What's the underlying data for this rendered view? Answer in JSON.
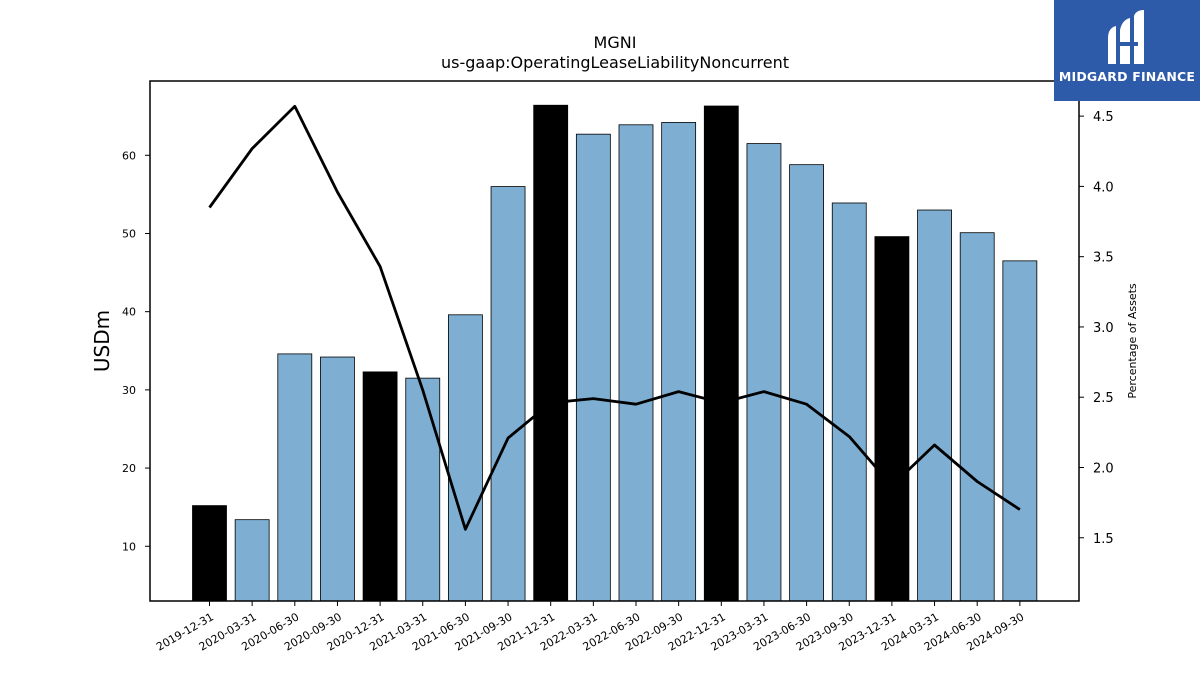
{
  "chart_data": {
    "type": "bar",
    "title": "MGNI",
    "subtitle": "us-gaap:OperatingLeaseLiabilityNoncurrent",
    "ylabel": "USDm",
    "y2label": "Percentage of Assets",
    "ylim": [
      3,
      69.5
    ],
    "y2lim": [
      1.05,
      4.75
    ],
    "yticks": [
      10,
      20,
      30,
      40,
      50,
      60
    ],
    "y2ticks": [
      1.5,
      2.0,
      2.5,
      3.0,
      3.5,
      4.0,
      4.5
    ],
    "y2tick_labels": [
      "1.5",
      "2.0",
      "2.5",
      "3.0",
      "3.5",
      "4.0",
      "4.5"
    ],
    "categories": [
      "2019-12-31",
      "2020-03-31",
      "2020-06-30",
      "2020-09-30",
      "2020-12-31",
      "2021-03-31",
      "2021-06-30",
      "2021-09-30",
      "2021-12-31",
      "2022-03-31",
      "2022-06-30",
      "2022-09-30",
      "2022-12-31",
      "2023-03-31",
      "2023-06-30",
      "2023-09-30",
      "2023-12-31",
      "2024-03-31",
      "2024-06-30",
      "2024-09-30"
    ],
    "series": [
      {
        "kind": "bar",
        "values": [
          15.2,
          13.4,
          34.6,
          34.2,
          32.3,
          31.5,
          39.6,
          56.0,
          66.4,
          62.7,
          63.9,
          64.2,
          66.3,
          61.5,
          58.8,
          53.9,
          49.6,
          53.0,
          50.1,
          46.5
        ],
        "highlight": [
          true,
          false,
          false,
          false,
          true,
          false,
          false,
          false,
          true,
          false,
          false,
          false,
          true,
          false,
          false,
          false,
          true,
          false,
          false,
          false
        ]
      },
      {
        "kind": "line",
        "axis": "right",
        "values": [
          3.85,
          4.27,
          4.57,
          3.96,
          3.43,
          2.55,
          1.56,
          2.21,
          2.46,
          2.49,
          2.45,
          2.54,
          2.46,
          2.54,
          2.45,
          2.22,
          1.87,
          2.16,
          1.9,
          1.7
        ]
      }
    ],
    "colors": {
      "bar": "#7eafd3",
      "bar_highlight": "#000000",
      "line": "#000000"
    },
    "grid": false,
    "legend": "none"
  },
  "logo": {
    "text": "MIDGARD FINANCE",
    "background": "#2d5aa9"
  }
}
